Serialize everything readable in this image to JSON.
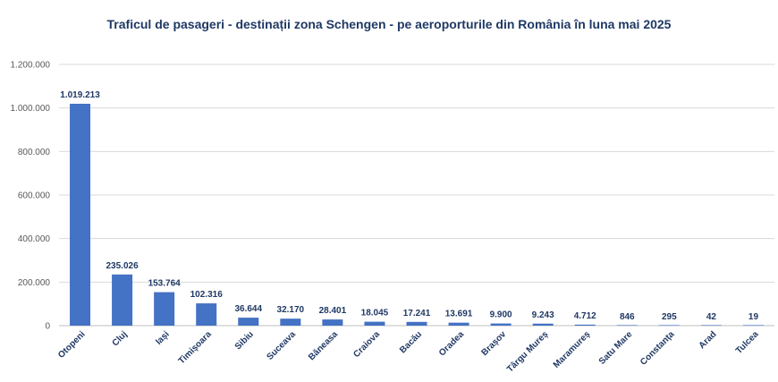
{
  "chart_data": {
    "type": "bar",
    "title": "Traficul de pasageri - destinații zona Schengen - pe aeroporturile din România în luna mai 2025",
    "xlabel": "",
    "ylabel": "",
    "ylim": [
      0,
      1200000
    ],
    "yticks": [
      0,
      200000,
      400000,
      600000,
      800000,
      1000000,
      1200000
    ],
    "ytick_labels": [
      "0",
      "200.000",
      "400.000",
      "600.000",
      "800.000",
      "1.000.000",
      "1.200.000"
    ],
    "grid": true,
    "legend": "none",
    "bar_color": "#4472c4",
    "categories": [
      "Otopeni",
      "Cluj",
      "Iași",
      "Timișoara",
      "Sibiu",
      "Suceava",
      "Băneasa",
      "Craiova",
      "Bacău",
      "Oradea",
      "Brașov",
      "Târgu Mureș",
      "Maramureș",
      "Satu Mare",
      "Constanța",
      "Arad",
      "Tulcea"
    ],
    "values": [
      1019213,
      235026,
      153764,
      102316,
      36644,
      32170,
      28401,
      18045,
      17241,
      13691,
      9900,
      9243,
      4712,
      846,
      295,
      42,
      19
    ],
    "value_labels": [
      "1.019.213",
      "235.026",
      "153.764",
      "102.316",
      "36.644",
      "32.170",
      "28.401",
      "18.045",
      "17.241",
      "13.691",
      "9.900",
      "9.243",
      "4.712",
      "846",
      "295",
      "42",
      "19"
    ]
  }
}
